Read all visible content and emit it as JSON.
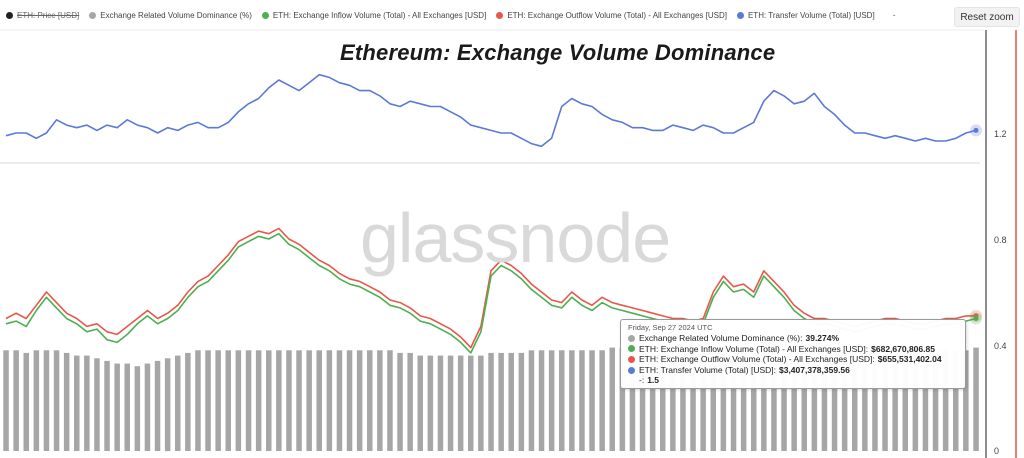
{
  "legend": {
    "items": [
      {
        "label": "ETH: Price [USD]",
        "color": "#222222",
        "hidden": true
      },
      {
        "label": "Exchange Related Volume Dominance (%)",
        "color": "#a6a6a6",
        "hidden": false
      },
      {
        "label": "ETH: Exchange Inflow Volume (Total) - All Exchanges [USD]",
        "color": "#4caf50",
        "hidden": false
      },
      {
        "label": "ETH: Exchange Outflow Volume (Total) - All Exchanges [USD]",
        "color": "#e8574b",
        "hidden": false
      },
      {
        "label": "ETH: Transfer Volume (Total) [USD]",
        "color": "#5b79d6",
        "hidden": false
      }
    ],
    "extra_mark": "-"
  },
  "toolbar": {
    "reset_zoom_label": "Reset zoom"
  },
  "chart_data": {
    "type": "line",
    "title": "Ethereum: Exchange Volume Dominance",
    "watermark": "glassnode",
    "right_axis_ticks": [
      "1.2",
      "0.8",
      "0.4",
      "0"
    ],
    "series": [
      {
        "name": "ETH: Transfer Volume (Total) [USD]",
        "color": "#5b79d6",
        "values": [
          1.19,
          1.2,
          1.2,
          1.18,
          1.2,
          1.25,
          1.23,
          1.22,
          1.23,
          1.21,
          1.23,
          1.22,
          1.25,
          1.23,
          1.22,
          1.2,
          1.22,
          1.21,
          1.23,
          1.24,
          1.22,
          1.22,
          1.24,
          1.28,
          1.31,
          1.33,
          1.37,
          1.4,
          1.38,
          1.36,
          1.39,
          1.42,
          1.41,
          1.39,
          1.38,
          1.36,
          1.36,
          1.34,
          1.31,
          1.3,
          1.32,
          1.31,
          1.3,
          1.3,
          1.28,
          1.26,
          1.23,
          1.22,
          1.21,
          1.2,
          1.2,
          1.18,
          1.16,
          1.15,
          1.18,
          1.3,
          1.33,
          1.31,
          1.3,
          1.27,
          1.25,
          1.24,
          1.22,
          1.22,
          1.21,
          1.21,
          1.23,
          1.22,
          1.21,
          1.23,
          1.22,
          1.2,
          1.2,
          1.22,
          1.24,
          1.32,
          1.36,
          1.34,
          1.31,
          1.32,
          1.35,
          1.3,
          1.27,
          1.23,
          1.2,
          1.2,
          1.19,
          1.18,
          1.19,
          1.18,
          1.17,
          1.18,
          1.17,
          1.17,
          1.18,
          1.2,
          1.21
        ]
      },
      {
        "name": "ETH: Exchange Outflow Volume (Total) - All Exchanges [USD]",
        "color": "#e8574b",
        "values": [
          0.5,
          0.52,
          0.5,
          0.55,
          0.6,
          0.56,
          0.52,
          0.5,
          0.47,
          0.48,
          0.45,
          0.44,
          0.47,
          0.5,
          0.53,
          0.5,
          0.52,
          0.55,
          0.6,
          0.64,
          0.66,
          0.7,
          0.74,
          0.79,
          0.81,
          0.83,
          0.82,
          0.84,
          0.8,
          0.78,
          0.75,
          0.72,
          0.7,
          0.67,
          0.65,
          0.64,
          0.62,
          0.6,
          0.57,
          0.56,
          0.54,
          0.51,
          0.5,
          0.48,
          0.46,
          0.43,
          0.39,
          0.47,
          0.68,
          0.72,
          0.7,
          0.67,
          0.63,
          0.6,
          0.57,
          0.56,
          0.6,
          0.57,
          0.55,
          0.58,
          0.56,
          0.55,
          0.54,
          0.53,
          0.52,
          0.51,
          0.5,
          0.5,
          0.49,
          0.5,
          0.6,
          0.66,
          0.62,
          0.63,
          0.6,
          0.68,
          0.64,
          0.6,
          0.55,
          0.52,
          0.5,
          0.5,
          0.49,
          0.48,
          0.47,
          0.48,
          0.49,
          0.5,
          0.5,
          0.49,
          0.48,
          0.48,
          0.49,
          0.5,
          0.5,
          0.51,
          0.51
        ]
      },
      {
        "name": "ETH: Exchange Inflow Volume (Total) - All Exchanges [USD]",
        "color": "#4caf50",
        "values": [
          0.48,
          0.49,
          0.47,
          0.53,
          0.58,
          0.54,
          0.5,
          0.48,
          0.45,
          0.46,
          0.42,
          0.41,
          0.44,
          0.48,
          0.51,
          0.48,
          0.5,
          0.53,
          0.58,
          0.62,
          0.64,
          0.68,
          0.72,
          0.77,
          0.79,
          0.81,
          0.8,
          0.82,
          0.78,
          0.76,
          0.73,
          0.7,
          0.68,
          0.65,
          0.63,
          0.62,
          0.6,
          0.58,
          0.55,
          0.54,
          0.52,
          0.49,
          0.48,
          0.46,
          0.44,
          0.41,
          0.37,
          0.45,
          0.66,
          0.7,
          0.68,
          0.65,
          0.61,
          0.58,
          0.55,
          0.54,
          0.58,
          0.55,
          0.53,
          0.56,
          0.54,
          0.53,
          0.52,
          0.51,
          0.5,
          0.49,
          0.48,
          0.48,
          0.47,
          0.48,
          0.58,
          0.64,
          0.6,
          0.61,
          0.58,
          0.66,
          0.62,
          0.58,
          0.53,
          0.5,
          0.48,
          0.48,
          0.47,
          0.46,
          0.45,
          0.46,
          0.47,
          0.48,
          0.48,
          0.47,
          0.46,
          0.46,
          0.47,
          0.48,
          0.48,
          0.49,
          0.5
        ]
      },
      {
        "name": "Exchange Related Volume Dominance (%)",
        "color": "#a6a6a6",
        "type": "bar",
        "values": [
          0.38,
          0.38,
          0.37,
          0.38,
          0.38,
          0.38,
          0.37,
          0.36,
          0.36,
          0.35,
          0.34,
          0.33,
          0.33,
          0.32,
          0.33,
          0.34,
          0.35,
          0.36,
          0.37,
          0.38,
          0.38,
          0.38,
          0.38,
          0.38,
          0.38,
          0.38,
          0.38,
          0.38,
          0.38,
          0.38,
          0.38,
          0.38,
          0.38,
          0.38,
          0.38,
          0.38,
          0.38,
          0.38,
          0.38,
          0.37,
          0.37,
          0.36,
          0.36,
          0.36,
          0.36,
          0.36,
          0.36,
          0.36,
          0.37,
          0.37,
          0.37,
          0.37,
          0.38,
          0.38,
          0.38,
          0.38,
          0.38,
          0.38,
          0.38,
          0.38,
          0.39,
          0.39,
          0.39,
          0.39,
          0.39,
          0.39,
          0.39,
          0.39,
          0.39,
          0.39,
          0.39,
          0.39,
          0.39,
          0.39,
          0.39,
          0.39,
          0.39,
          0.38,
          0.38,
          0.38,
          0.38,
          0.38,
          0.38,
          0.38,
          0.38,
          0.38,
          0.38,
          0.38,
          0.38,
          0.38,
          0.38,
          0.38,
          0.38,
          0.38,
          0.38,
          0.38,
          0.39
        ]
      }
    ]
  },
  "tooltip": {
    "date": "Friday, Sep 27 2024 UTC",
    "rows": [
      {
        "label": "Exchange Related Volume Dominance (%):",
        "value": "39.274%",
        "color": "#a6a6a6"
      },
      {
        "label": "ETH: Exchange Inflow Volume (Total) - All Exchanges [USD]:",
        "value": "$682,670,806.85",
        "color": "#4caf50"
      },
      {
        "label": "ETH: Exchange Outflow Volume (Total) - All Exchanges [USD]:",
        "value": "$655,531,402.04",
        "color": "#e8574b"
      },
      {
        "label": "ETH: Transfer Volume (Total) [USD]:",
        "value": "$3,407,378,359.56",
        "color": "#5b79d6"
      },
      {
        "label": "-:",
        "value": "1.5",
        "color": ""
      }
    ]
  }
}
